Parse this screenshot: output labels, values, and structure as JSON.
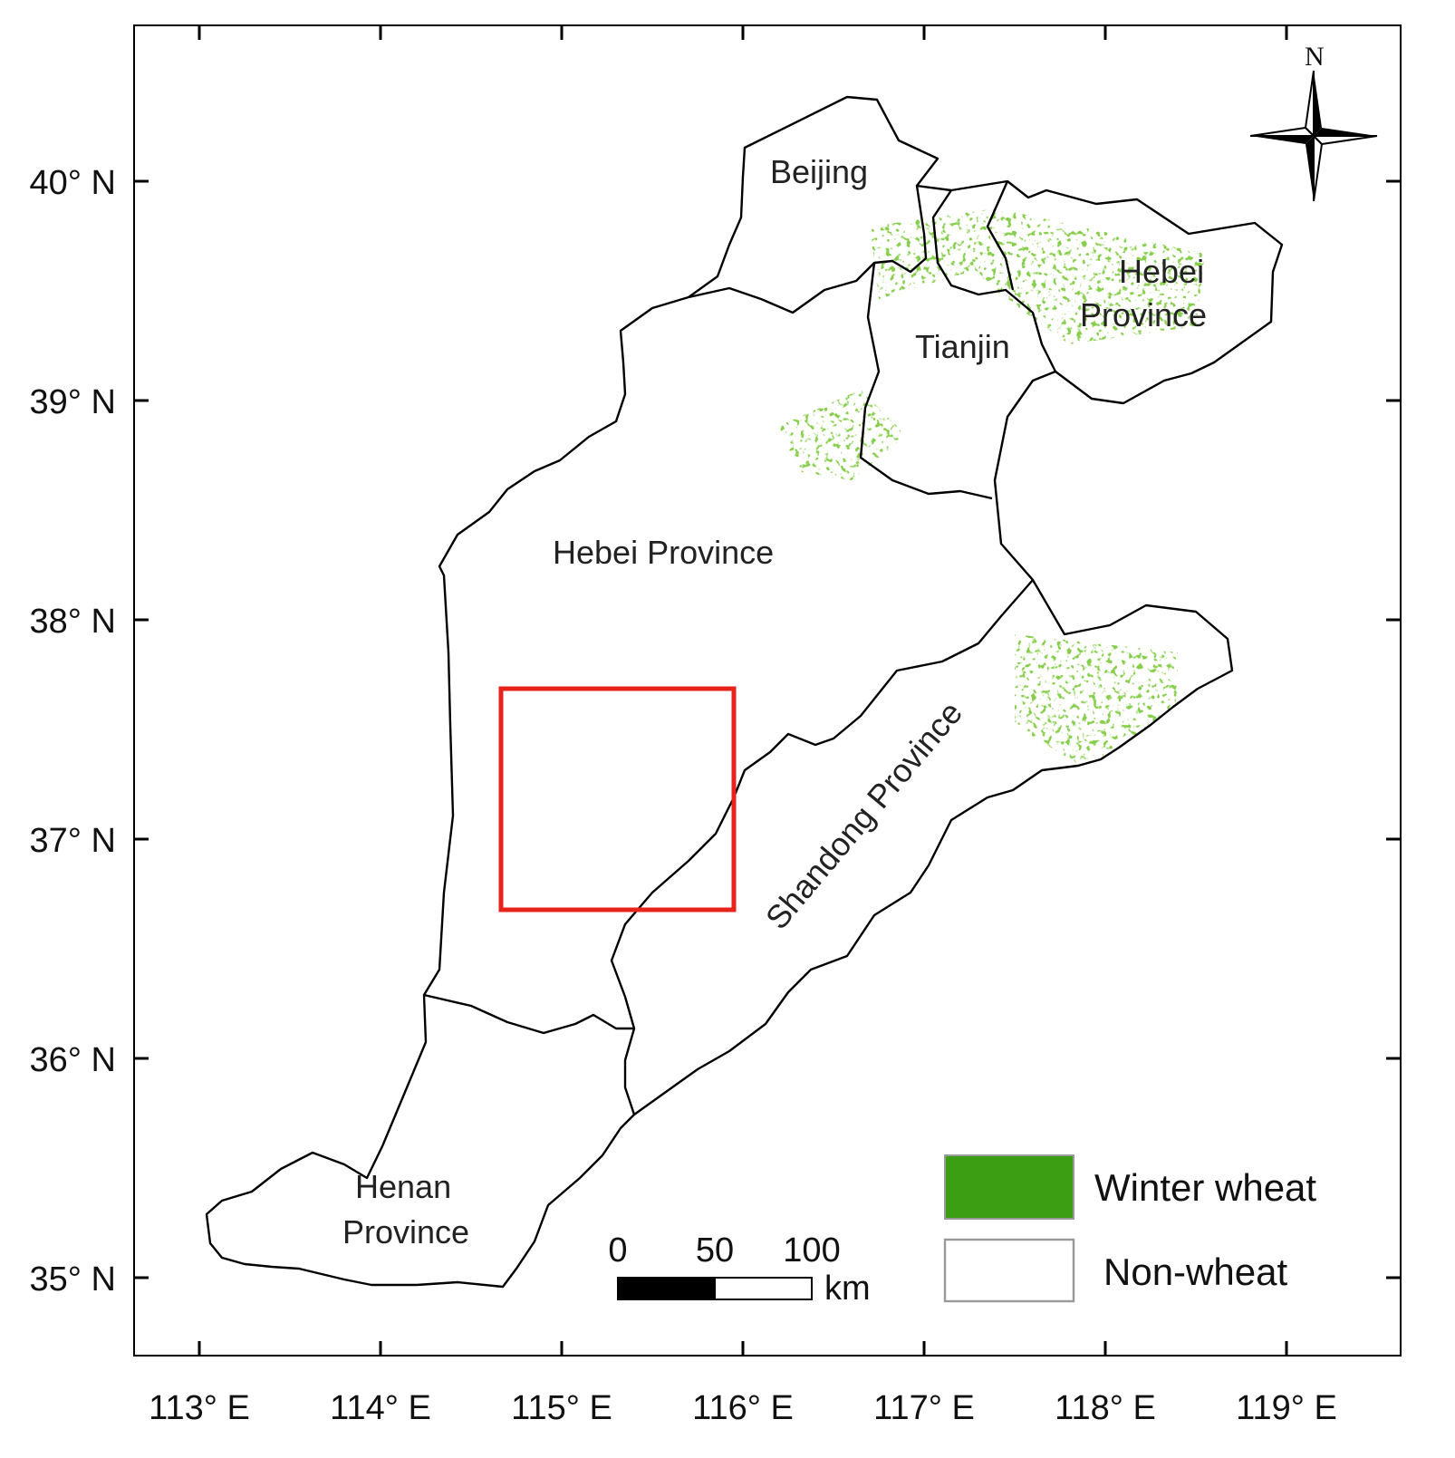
{
  "map": {
    "x_axis": {
      "ticks": [
        {
          "lon": 113,
          "label": "113° E"
        },
        {
          "lon": 114,
          "label": "114° E"
        },
        {
          "lon": 115,
          "label": "115° E"
        },
        {
          "lon": 116,
          "label": "116° E"
        },
        {
          "lon": 117,
          "label": "117° E"
        },
        {
          "lon": 118,
          "label": "118° E"
        },
        {
          "lon": 119,
          "label": "119° E"
        }
      ]
    },
    "y_axis": {
      "ticks": [
        {
          "lat": 40,
          "label": "40° N"
        },
        {
          "lat": 39,
          "label": "39° N"
        },
        {
          "lat": 38,
          "label": "38° N"
        },
        {
          "lat": 37,
          "label": "37° N"
        },
        {
          "lat": 36,
          "label": "36° N"
        },
        {
          "lat": 35,
          "label": "35° N"
        }
      ]
    },
    "regions": {
      "beijing": "Beijing",
      "tianjin": "Tianjin",
      "hebei_ne_line1": "Hebei",
      "hebei_ne_line2": "Province",
      "hebei_main": "Hebei Province",
      "shandong": "Shandong Province",
      "henan_line1": "Henan",
      "henan_line2": "Province"
    },
    "north_arrow": {
      "label": "N",
      "icon": "north-arrow-compass-icon"
    },
    "scale_bar": {
      "labels": [
        "0",
        "50",
        "100"
      ],
      "unit": "km"
    },
    "legend": [
      {
        "label": "Winter wheat",
        "color": "#3c9e12"
      },
      {
        "label": "Non-wheat",
        "color": "#ffffff"
      }
    ],
    "colors": {
      "wheat": "#3c9e12",
      "study_box": "#e8231c",
      "boundary": "#000000"
    }
  }
}
